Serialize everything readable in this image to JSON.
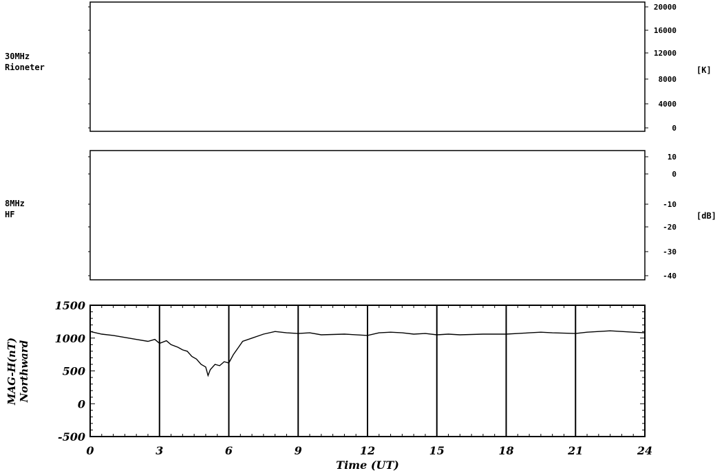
{
  "chart_data": [
    {
      "type": "line",
      "panel": "rioneter",
      "label_lines": [
        "30MHz",
        "Rioneter"
      ],
      "unit": "[K]",
      "yticks": [
        "20000",
        "16000",
        "12000",
        "8000",
        "4000",
        "0"
      ],
      "ylim": [
        0,
        20000
      ],
      "series": []
    },
    {
      "type": "line",
      "panel": "hf",
      "label_lines": [
        "8MHz",
        "HF"
      ],
      "unit": "[dB]",
      "yticks": [
        "10",
        "0",
        "-10",
        "-20",
        "-30",
        "-40"
      ],
      "ylim": [
        -40,
        10
      ],
      "series": []
    },
    {
      "type": "line",
      "panel": "mag",
      "ylabel_lines": [
        "MAG-H(nT)",
        "Northward"
      ],
      "xlabel": "Time (UT)",
      "xticks": [
        "0",
        "3",
        "6",
        "9",
        "12",
        "15",
        "18",
        "21",
        "24"
      ],
      "yticks": [
        "1500",
        "1000",
        "500",
        "0",
        "-500"
      ],
      "xlim": [
        0,
        24
      ],
      "ylim": [
        -500,
        1500
      ],
      "grid": "vertical lines every 3 h",
      "series": [
        {
          "x": [
            0,
            0.5,
            1,
            1.5,
            2,
            2.5,
            2.8,
            3,
            3.3,
            3.5,
            3.8,
            4,
            4.2,
            4.4,
            4.6,
            4.8,
            5,
            5.1,
            5.2,
            5.4,
            5.6,
            5.8,
            6,
            6.2,
            6.4,
            6.6,
            7,
            7.5,
            8,
            8.5,
            9,
            9.5,
            10,
            11,
            12,
            12.5,
            13,
            13.5,
            14,
            14.5,
            15,
            15.5,
            16,
            17,
            18,
            18.5,
            19,
            19.5,
            20,
            21,
            21.5,
            22,
            22.5,
            23,
            23.5,
            24
          ],
          "y": [
            1100,
            1060,
            1040,
            1010,
            980,
            950,
            980,
            920,
            960,
            900,
            860,
            820,
            800,
            720,
            680,
            600,
            560,
            430,
            520,
            600,
            580,
            640,
            620,
            750,
            850,
            950,
            1000,
            1060,
            1100,
            1080,
            1070,
            1080,
            1050,
            1060,
            1040,
            1080,
            1090,
            1080,
            1060,
            1070,
            1050,
            1060,
            1050,
            1060,
            1060,
            1070,
            1080,
            1090,
            1080,
            1070,
            1090,
            1100,
            1110,
            1100,
            1090,
            1080
          ]
        }
      ]
    }
  ]
}
